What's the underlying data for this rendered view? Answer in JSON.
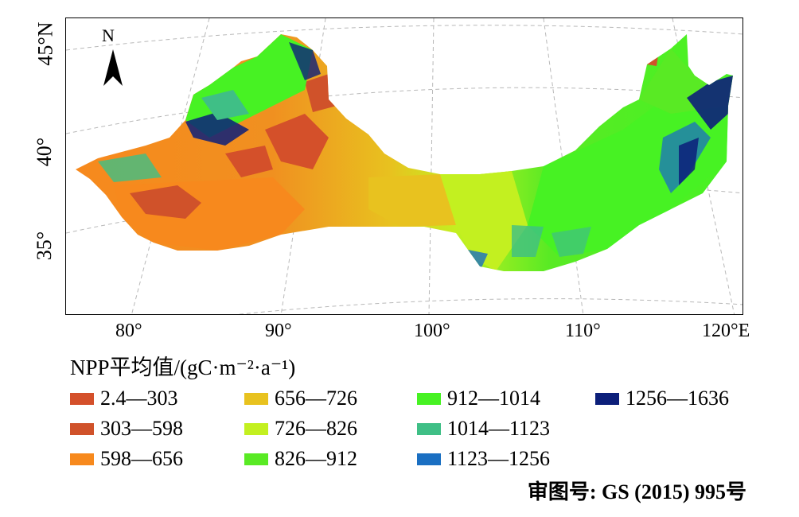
{
  "map": {
    "north_label": "N",
    "latitude_labels": [
      "45°N",
      "40°",
      "35°"
    ],
    "longitude_labels": [
      "80°",
      "90°",
      "100°",
      "110°",
      "120°E"
    ]
  },
  "legend": {
    "title": "NPP平均值/(gC·m⁻²·a⁻¹)",
    "items": [
      {
        "label": "2.4—303",
        "color": "#d4502a"
      },
      {
        "label": "303—598",
        "color": "#d0522a"
      },
      {
        "label": "598—656",
        "color": "#f7891d"
      },
      {
        "label": "656—726",
        "color": "#e8c21f"
      },
      {
        "label": "726—826",
        "color": "#c3f020"
      },
      {
        "label": "826—912",
        "color": "#59ea24"
      },
      {
        "label": "912—1014",
        "color": "#47f223"
      },
      {
        "label": "1014—1123",
        "color": "#3fbf86"
      },
      {
        "label": "1123—1256",
        "color": "#1a6fc2"
      },
      {
        "label": "1256—1636",
        "color": "#0c1f7a"
      }
    ]
  },
  "approval_number": "审图号: GS (2015) 995号"
}
